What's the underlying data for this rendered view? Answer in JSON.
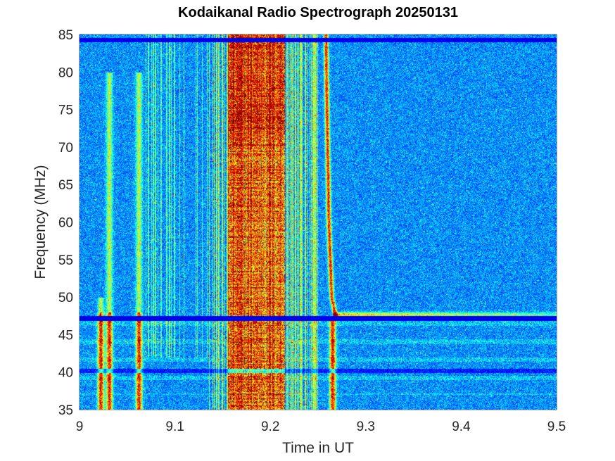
{
  "chart_data": {
    "type": "heatmap",
    "title": "Kodaikanal Radio Spectrograph  20250131",
    "xlabel": "Time in UT",
    "ylabel": "Frequency (MHz)",
    "xlim": [
      9.0,
      9.5
    ],
    "ylim": [
      35,
      85
    ],
    "xticks": [
      9.0,
      9.1,
      9.2,
      9.3,
      9.4,
      9.5
    ],
    "xtick_labels": [
      "9",
      "9.1",
      "9.2",
      "9.3",
      "9.4",
      "9.5"
    ],
    "yticks": [
      35,
      40,
      45,
      50,
      55,
      60,
      65,
      70,
      75,
      80,
      85
    ],
    "ytick_labels": [
      "35",
      "40",
      "45",
      "50",
      "55",
      "60",
      "65",
      "70",
      "75",
      "80",
      "85"
    ],
    "colormap": "jet",
    "grid": false,
    "features": {
      "burst_region": {
        "time_start": 9.155,
        "time_end": 9.215,
        "freq_low": 35,
        "freq_high": 85
      },
      "secondary_band": {
        "time_start": 9.135,
        "time_end": 9.25,
        "freq_low": 35,
        "freq_high": 85
      },
      "drifting_burst": [
        [
          9.258,
          85
        ],
        [
          9.259,
          75
        ],
        [
          9.261,
          60
        ],
        [
          9.264,
          50
        ],
        [
          9.268,
          47.5
        ]
      ],
      "narrow_bursts": [
        {
          "time": 9.022,
          "freq_low": 35,
          "freq_high": 50
        },
        {
          "time": 9.031,
          "freq_low": 35,
          "freq_high": 80
        },
        {
          "time": 9.062,
          "freq_low": 35,
          "freq_high": 80
        },
        {
          "time": 9.265,
          "freq_low": 35,
          "freq_high": 47
        }
      ],
      "emission_line": {
        "freq": 47.7,
        "time_start": 9.265,
        "time_end": 9.5
      },
      "gap_line": {
        "freq": 47.2
      },
      "gap_line_top": {
        "freq": 84.3
      }
    }
  }
}
